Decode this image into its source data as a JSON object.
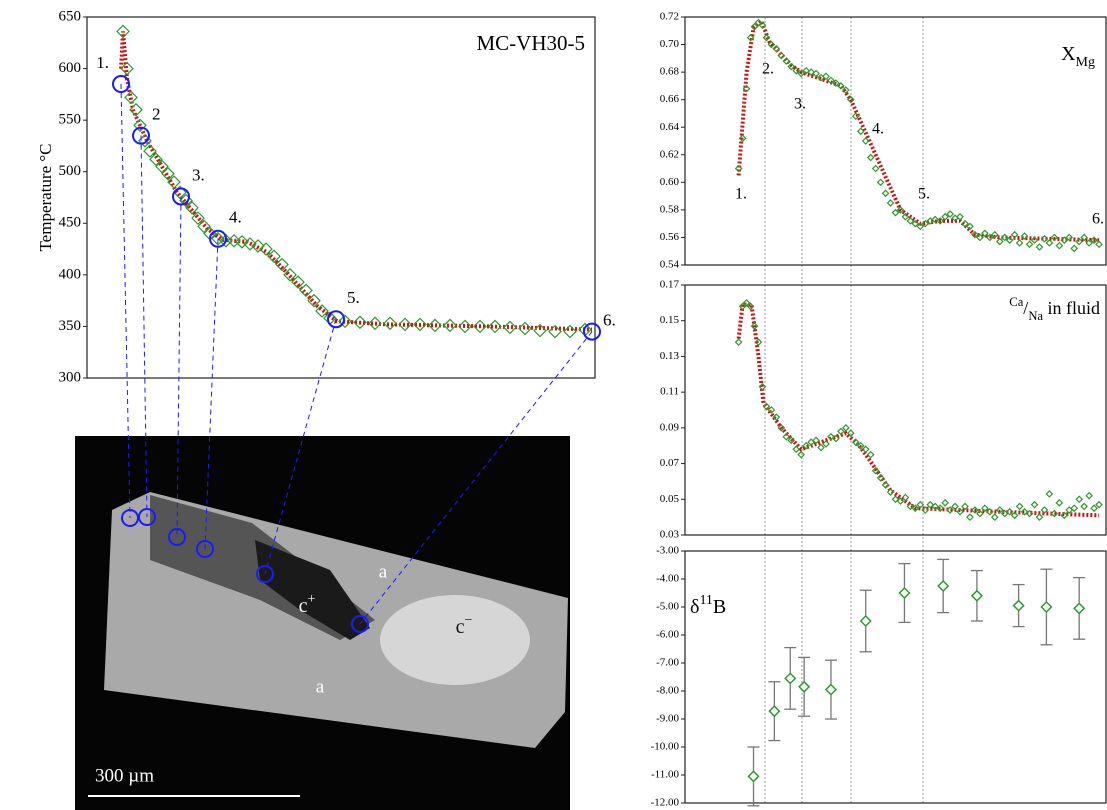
{
  "chart_data": [
    {
      "type": "scatter",
      "title_parts": [
        "MC-VH30-5"
      ],
      "ylabel": "Temperature °C",
      "xlim": [
        0,
        508
      ],
      "ylim": [
        300,
        650
      ],
      "yticks": [
        300,
        350,
        400,
        450,
        500,
        550,
        600,
        650
      ],
      "series": [
        {
          "color": "#2e9a2e",
          "marker": "diamond",
          "x": [
            36,
            40,
            44,
            49,
            53,
            58,
            63,
            69,
            75,
            81,
            87,
            93,
            99,
            105,
            111,
            117,
            123,
            131,
            139,
            147,
            155,
            163,
            171,
            179,
            187,
            195,
            203,
            211,
            219,
            227,
            235,
            243,
            258,
            273,
            288,
            303,
            318,
            333,
            348,
            363,
            378,
            393,
            408,
            423,
            438,
            453,
            468,
            483,
            498
          ],
          "values": [
            636,
            600,
            572,
            560,
            545,
            530,
            520,
            512,
            505,
            498,
            490,
            480,
            472,
            465,
            455,
            447,
            440,
            435,
            433,
            433,
            432,
            430,
            428,
            425,
            418,
            410,
            400,
            393,
            385,
            375,
            365,
            358,
            355,
            354,
            353,
            353,
            352,
            352,
            351,
            351,
            350,
            350,
            350,
            349,
            348,
            346,
            345,
            345,
            347
          ]
        }
      ],
      "fit": {
        "color": "#cc1111",
        "x": [
          34,
          36,
          40,
          46,
          60,
          90,
          120,
          135,
          160,
          180,
          200,
          230,
          250,
          300,
          400,
          505
        ],
        "values": [
          600,
          636,
          590,
          560,
          530,
          480,
          445,
          434,
          432,
          422,
          402,
          370,
          355,
          352,
          350,
          347
        ]
      },
      "markers": {
        "color": "#1a1aff",
        "x": [
          34,
          54,
          94,
          131,
          249,
          505
        ],
        "values": [
          585,
          535,
          476,
          435,
          357,
          345
        ],
        "labels": [
          "1.",
          "2",
          "3.",
          "4.",
          "5.",
          "6."
        ]
      }
    },
    {
      "type": "scatter",
      "title_parts": [
        "X",
        "Mg"
      ],
      "xlim": [
        0,
        424
      ],
      "ylim": [
        0.54,
        0.72
      ],
      "yticks": [
        0.54,
        0.56,
        0.58,
        {
          "value": 0.6,
          "label": "0.60"
        },
        0.62,
        0.64,
        0.66,
        0.68,
        {
          "value": 0.7,
          "label": "0.70"
        },
        0.72
      ],
      "series": [
        {
          "color": "#2e9a2e",
          "marker": "diamond",
          "x": [
            54,
            58,
            62,
            66,
            70,
            74,
            78,
            82,
            87,
            92,
            97,
            102,
            107,
            112,
            117,
            122,
            127,
            132,
            137,
            142,
            147,
            152,
            157,
            162,
            167,
            172,
            177,
            182,
            187,
            192,
            197,
            202,
            207,
            212,
            217,
            222,
            227,
            232,
            237,
            242,
            247,
            252,
            257,
            262,
            267,
            272,
            277,
            282,
            287,
            292,
            297,
            302,
            307,
            312,
            317,
            322,
            327,
            332,
            337,
            342,
            347,
            352,
            357,
            362,
            367,
            372,
            377,
            382,
            387,
            392,
            397,
            402,
            407,
            412,
            417
          ],
          "values": [
            0.61,
            0.632,
            0.668,
            0.705,
            0.713,
            0.716,
            0.714,
            0.705,
            0.7,
            0.697,
            0.692,
            0.688,
            0.684,
            0.681,
            0.679,
            0.681,
            0.68,
            0.679,
            0.676,
            0.677,
            0.674,
            0.672,
            0.67,
            0.667,
            0.66,
            0.648,
            0.637,
            0.63,
            0.618,
            0.61,
            0.6,
            0.592,
            0.585,
            0.578,
            0.58,
            0.575,
            0.572,
            0.57,
            0.568,
            0.57,
            0.572,
            0.573,
            0.572,
            0.575,
            0.577,
            0.574,
            0.575,
            0.57,
            0.568,
            0.562,
            0.56,
            0.563,
            0.56,
            0.562,
            0.557,
            0.56,
            0.558,
            0.562,
            0.556,
            0.561,
            0.555,
            0.558,
            0.553,
            0.559,
            0.556,
            0.56,
            0.554,
            0.558,
            0.56,
            0.552,
            0.557,
            0.56,
            0.556,
            0.558,
            0.555
          ]
        }
      ],
      "fit": {
        "color": "#cc1111",
        "x": [
          54,
          62,
          69,
          77,
          85,
          107,
          117,
          157,
          167,
          217,
          237,
          257,
          277,
          292,
          317,
          417
        ],
        "values": [
          0.605,
          0.68,
          0.712,
          0.717,
          0.702,
          0.685,
          0.68,
          0.67,
          0.66,
          0.58,
          0.57,
          0.572,
          0.572,
          0.562,
          0.56,
          0.558
        ]
      },
      "annotations": [
        "1.",
        "2.",
        "3.",
        "4.",
        "5.",
        "6."
      ]
    },
    {
      "type": "scatter",
      "title_parts": [
        "Ca",
        "/",
        "Na",
        " in fluid"
      ],
      "xlim": [
        0,
        424
      ],
      "ylim": [
        0.03,
        0.17
      ],
      "yticks": [
        0.03,
        0.05,
        0.07,
        0.09,
        0.11,
        0.13,
        0.15,
        0.17
      ],
      "series": [
        {
          "color": "#2e9a2e",
          "marker": "diamond",
          "x": [
            54,
            58,
            62,
            66,
            70,
            74,
            78,
            82,
            87,
            92,
            97,
            102,
            107,
            112,
            117,
            122,
            127,
            132,
            137,
            142,
            147,
            152,
            157,
            162,
            167,
            172,
            177,
            182,
            187,
            192,
            197,
            202,
            207,
            212,
            217,
            222,
            227,
            232,
            237,
            242,
            247,
            252,
            257,
            262,
            267,
            272,
            277,
            282,
            287,
            292,
            297,
            302,
            307,
            312,
            317,
            322,
            327,
            332,
            337,
            342,
            347,
            352,
            357,
            362,
            367,
            372,
            377,
            382,
            387,
            392,
            397,
            402,
            407,
            412,
            417
          ],
          "values": [
            0.138,
            0.158,
            0.16,
            0.158,
            0.147,
            0.138,
            0.113,
            0.102,
            0.1,
            0.096,
            0.09,
            0.085,
            0.083,
            0.078,
            0.075,
            0.08,
            0.082,
            0.083,
            0.079,
            0.081,
            0.085,
            0.084,
            0.088,
            0.09,
            0.087,
            0.082,
            0.08,
            0.078,
            0.075,
            0.066,
            0.062,
            0.058,
            0.054,
            0.05,
            0.049,
            0.051,
            0.046,
            0.045,
            0.047,
            0.044,
            0.047,
            0.046,
            0.045,
            0.048,
            0.044,
            0.046,
            0.043,
            0.046,
            0.04,
            0.044,
            0.042,
            0.045,
            0.043,
            0.04,
            0.044,
            0.042,
            0.043,
            0.041,
            0.046,
            0.043,
            0.042,
            0.047,
            0.04,
            0.044,
            0.053,
            0.042,
            0.048,
            0.041,
            0.044,
            0.045,
            0.05,
            0.046,
            0.052,
            0.045,
            0.047
          ]
        }
      ],
      "fit": {
        "color": "#cc1111",
        "x": [
          54,
          58,
          67,
          74,
          79,
          97,
          117,
          137,
          162,
          177,
          207,
          232,
          277,
          317,
          417
        ],
        "values": [
          0.14,
          0.159,
          0.159,
          0.13,
          0.104,
          0.09,
          0.078,
          0.082,
          0.087,
          0.079,
          0.055,
          0.045,
          0.044,
          0.043,
          0.041
        ]
      }
    },
    {
      "type": "errorbar",
      "title_parts": [
        "δ",
        "11",
        "B"
      ],
      "xlim": [
        0,
        424
      ],
      "ylim": [
        -12,
        -3
      ],
      "yticks": [
        {
          "value": -3,
          "label": "-3.00"
        },
        {
          "value": -4,
          "label": "-4.00"
        },
        {
          "value": -5,
          "label": "-5.00"
        },
        {
          "value": -6,
          "label": "-6.00"
        },
        {
          "value": -7,
          "label": "-7.00"
        },
        {
          "value": -8,
          "label": "-8.00"
        },
        {
          "value": -9,
          "label": "-9.00"
        },
        {
          "value": -10,
          "label": "-10.00"
        },
        {
          "value": -11,
          "label": "-11.00"
        },
        {
          "value": -12,
          "label": "-12.00"
        }
      ],
      "series": [
        {
          "color": "#2e9a2e",
          "marker": "diamond",
          "x": [
            69,
            90,
            106,
            120,
            147,
            182,
            221,
            260,
            294,
            336,
            364,
            397
          ],
          "values": [
            -11.05,
            -8.72,
            -7.55,
            -7.85,
            -7.95,
            -5.5,
            -4.5,
            -4.25,
            -4.6,
            -4.95,
            -5.0,
            -5.05
          ],
          "errors": [
            1.05,
            1.05,
            1.1,
            1.05,
            1.05,
            1.1,
            1.05,
            0.95,
            0.9,
            0.75,
            1.35,
            1.1
          ]
        }
      ]
    }
  ],
  "image": {
    "labels": [
      "a",
      "a"
    ],
    "core_labels": [
      [
        "c",
        "+"
      ],
      [
        "c",
        "−"
      ]
    ],
    "scale_bar": "300 µm"
  }
}
